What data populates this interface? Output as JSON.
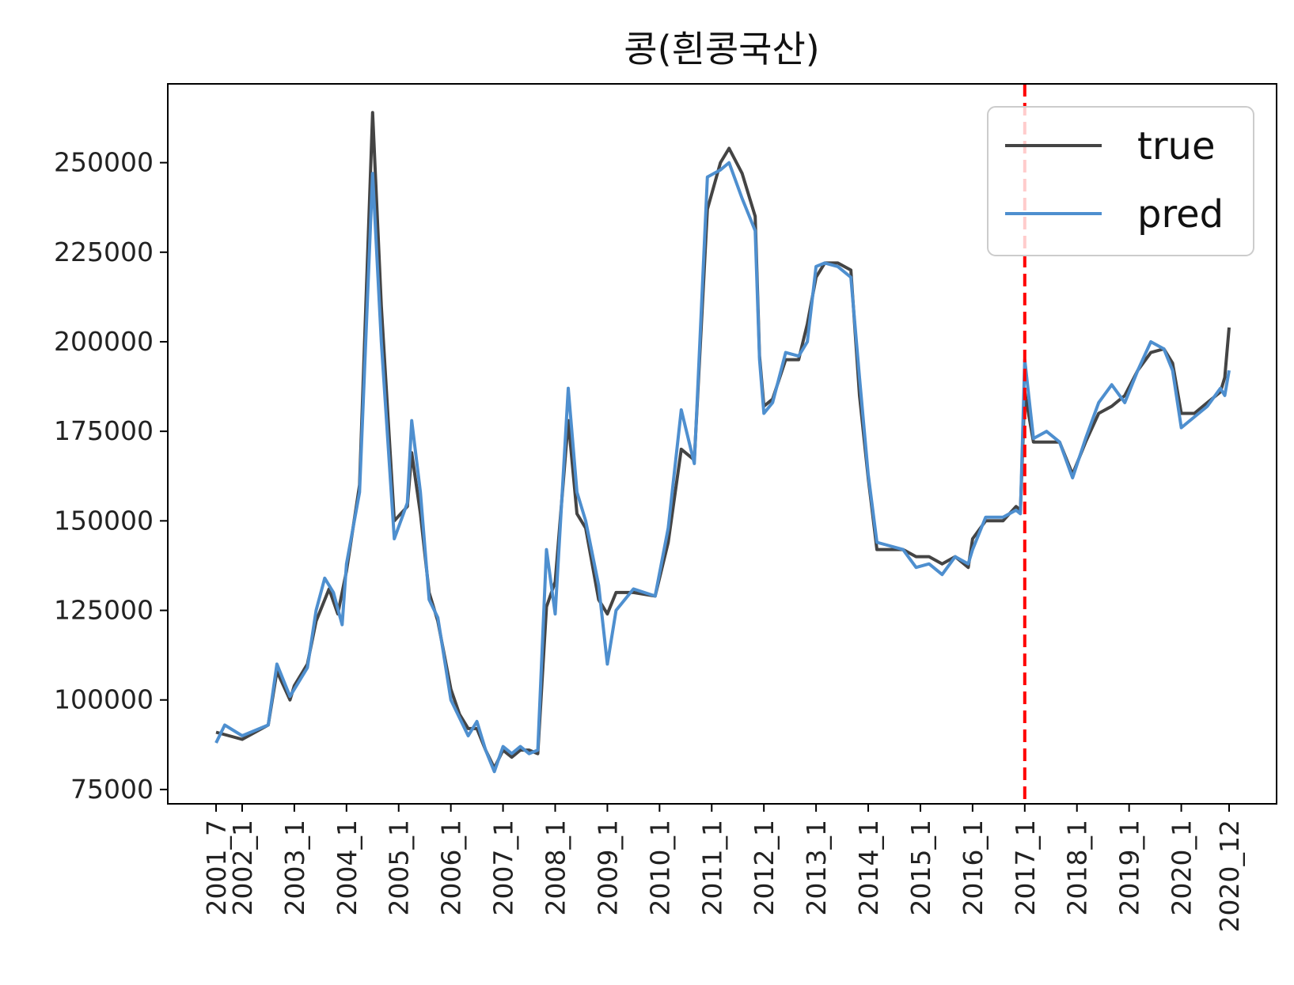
{
  "chart_data": {
    "type": "line",
    "title": "콩(흰콩국산)",
    "xlabel": "",
    "ylabel": "",
    "ylim": [
      71000,
      272000
    ],
    "yticks": [
      75000,
      100000,
      125000,
      150000,
      175000,
      200000,
      225000,
      250000
    ],
    "x_tick_labels": [
      "2001_7",
      "2002_1",
      "2003_1",
      "2004_1",
      "2005_1",
      "2006_1",
      "2007_1",
      "2008_1",
      "2009_1",
      "2010_1",
      "2011_1",
      "2012_1",
      "2013_1",
      "2014_1",
      "2015_1",
      "2016_1",
      "2017_1",
      "2018_1",
      "2019_1",
      "2020_1",
      "2020_12"
    ],
    "vline": {
      "at": "2017_1",
      "color": "#ff0000",
      "style": "dashed"
    },
    "grid": false,
    "legend_position": "top-right",
    "series": [
      {
        "name": "true",
        "color": "#444444",
        "points": [
          [
            "2001_7",
            91000
          ],
          [
            "2002_1",
            89000
          ],
          [
            "2002_7",
            93000
          ],
          [
            "2002_9",
            108000
          ],
          [
            "2002_12",
            100000
          ],
          [
            "2003_1",
            104000
          ],
          [
            "2003_4",
            110000
          ],
          [
            "2003_6",
            122000
          ],
          [
            "2003_9",
            131000
          ],
          [
            "2003_11",
            124000
          ],
          [
            "2004_1",
            136000
          ],
          [
            "2004_4",
            160000
          ],
          [
            "2004_7",
            264000
          ],
          [
            "2004_9",
            210000
          ],
          [
            "2004_12",
            150000
          ],
          [
            "2005_3",
            154000
          ],
          [
            "2005_4",
            169000
          ],
          [
            "2005_6",
            152000
          ],
          [
            "2005_8",
            130000
          ],
          [
            "2005_10",
            122000
          ],
          [
            "2006_1",
            103000
          ],
          [
            "2006_3",
            96000
          ],
          [
            "2006_5",
            92000
          ],
          [
            "2006_7",
            92000
          ],
          [
            "2006_9",
            86000
          ],
          [
            "2006_11",
            81000
          ],
          [
            "2007_1",
            86000
          ],
          [
            "2007_3",
            84000
          ],
          [
            "2007_5",
            86000
          ],
          [
            "2007_7",
            86000
          ],
          [
            "2007_9",
            85000
          ],
          [
            "2007_11",
            126000
          ],
          [
            "2008_1",
            133000
          ],
          [
            "2008_4",
            178000
          ],
          [
            "2008_6",
            152000
          ],
          [
            "2008_8",
            148000
          ],
          [
            "2008_11",
            128000
          ],
          [
            "2009_1",
            124000
          ],
          [
            "2009_3",
            130000
          ],
          [
            "2009_7",
            130000
          ],
          [
            "2009_12",
            129000
          ],
          [
            "2010_3",
            144000
          ],
          [
            "2010_6",
            170000
          ],
          [
            "2010_9",
            167000
          ],
          [
            "2010_12",
            237000
          ],
          [
            "2011_3",
            250000
          ],
          [
            "2011_5",
            254000
          ],
          [
            "2011_8",
            247000
          ],
          [
            "2011_11",
            235000
          ],
          [
            "2011_12",
            196000
          ],
          [
            "2012_1",
            182000
          ],
          [
            "2012_3",
            184000
          ],
          [
            "2012_6",
            195000
          ],
          [
            "2012_9",
            195000
          ],
          [
            "2012_11",
            205000
          ],
          [
            "2013_1",
            218000
          ],
          [
            "2013_3",
            222000
          ],
          [
            "2013_6",
            222000
          ],
          [
            "2013_9",
            220000
          ],
          [
            "2013_11",
            185000
          ],
          [
            "2014_1",
            162000
          ],
          [
            "2014_3",
            142000
          ],
          [
            "2014_6",
            142000
          ],
          [
            "2014_9",
            142000
          ],
          [
            "2014_12",
            140000
          ],
          [
            "2015_3",
            140000
          ],
          [
            "2015_6",
            138000
          ],
          [
            "2015_9",
            140000
          ],
          [
            "2015_12",
            137000
          ],
          [
            "2016_1",
            145000
          ],
          [
            "2016_4",
            150000
          ],
          [
            "2016_8",
            150000
          ],
          [
            "2016_11",
            154000
          ],
          [
            "2016_12",
            153000
          ],
          [
            "2017_1",
            186000
          ],
          [
            "2017_3",
            172000
          ],
          [
            "2017_6",
            172000
          ],
          [
            "2017_9",
            172000
          ],
          [
            "2017_12",
            163000
          ],
          [
            "2018_3",
            172000
          ],
          [
            "2018_6",
            180000
          ],
          [
            "2018_9",
            182000
          ],
          [
            "2018_12",
            185000
          ],
          [
            "2019_3",
            192000
          ],
          [
            "2019_6",
            197000
          ],
          [
            "2019_9",
            198000
          ],
          [
            "2019_11",
            194000
          ],
          [
            "2020_1",
            180000
          ],
          [
            "2020_4",
            180000
          ],
          [
            "2020_7",
            183000
          ],
          [
            "2020_10",
            186000
          ],
          [
            "2020_11",
            190000
          ],
          [
            "2020_12",
            204000
          ]
        ]
      },
      {
        "name": "pred",
        "color": "#4e8fcf",
        "points": [
          [
            "2001_7",
            88000
          ],
          [
            "2001_9",
            93000
          ],
          [
            "2002_1",
            90000
          ],
          [
            "2002_7",
            93000
          ],
          [
            "2002_9",
            110000
          ],
          [
            "2002_12",
            101000
          ],
          [
            "2003_1",
            103000
          ],
          [
            "2003_4",
            109000
          ],
          [
            "2003_6",
            125000
          ],
          [
            "2003_8",
            134000
          ],
          [
            "2003_10",
            130000
          ],
          [
            "2003_12",
            121000
          ],
          [
            "2004_1",
            138000
          ],
          [
            "2004_4",
            158000
          ],
          [
            "2004_7",
            247000
          ],
          [
            "2004_9",
            200000
          ],
          [
            "2004_12",
            145000
          ],
          [
            "2005_3",
            155000
          ],
          [
            "2005_4",
            178000
          ],
          [
            "2005_6",
            158000
          ],
          [
            "2005_8",
            128000
          ],
          [
            "2005_10",
            123000
          ],
          [
            "2006_1",
            100000
          ],
          [
            "2006_3",
            95000
          ],
          [
            "2006_5",
            90000
          ],
          [
            "2006_7",
            94000
          ],
          [
            "2006_9",
            86000
          ],
          [
            "2006_11",
            80000
          ],
          [
            "2007_1",
            87000
          ],
          [
            "2007_3",
            85000
          ],
          [
            "2007_5",
            87000
          ],
          [
            "2007_7",
            85000
          ],
          [
            "2007_9",
            86000
          ],
          [
            "2007_11",
            142000
          ],
          [
            "2008_1",
            124000
          ],
          [
            "2008_4",
            187000
          ],
          [
            "2008_6",
            158000
          ],
          [
            "2008_8",
            150000
          ],
          [
            "2008_11",
            132000
          ],
          [
            "2009_1",
            110000
          ],
          [
            "2009_3",
            125000
          ],
          [
            "2009_7",
            131000
          ],
          [
            "2009_12",
            129000
          ],
          [
            "2010_3",
            148000
          ],
          [
            "2010_6",
            181000
          ],
          [
            "2010_9",
            166000
          ],
          [
            "2010_12",
            246000
          ],
          [
            "2011_3",
            248000
          ],
          [
            "2011_5",
            250000
          ],
          [
            "2011_8",
            240000
          ],
          [
            "2011_11",
            231000
          ],
          [
            "2011_12",
            195000
          ],
          [
            "2012_1",
            180000
          ],
          [
            "2012_3",
            183000
          ],
          [
            "2012_6",
            197000
          ],
          [
            "2012_9",
            196000
          ],
          [
            "2012_11",
            200000
          ],
          [
            "2013_1",
            221000
          ],
          [
            "2013_3",
            222000
          ],
          [
            "2013_6",
            221000
          ],
          [
            "2013_9",
            218000
          ],
          [
            "2013_11",
            190000
          ],
          [
            "2014_1",
            163000
          ],
          [
            "2014_3",
            144000
          ],
          [
            "2014_6",
            143000
          ],
          [
            "2014_9",
            142000
          ],
          [
            "2014_12",
            137000
          ],
          [
            "2015_3",
            138000
          ],
          [
            "2015_6",
            135000
          ],
          [
            "2015_9",
            140000
          ],
          [
            "2015_12",
            138000
          ],
          [
            "2016_1",
            142000
          ],
          [
            "2016_4",
            151000
          ],
          [
            "2016_8",
            151000
          ],
          [
            "2016_11",
            153000
          ],
          [
            "2016_12",
            152000
          ],
          [
            "2017_1",
            195000
          ],
          [
            "2017_3",
            173000
          ],
          [
            "2017_6",
            175000
          ],
          [
            "2017_9",
            172000
          ],
          [
            "2017_12",
            162000
          ],
          [
            "2018_3",
            173000
          ],
          [
            "2018_6",
            183000
          ],
          [
            "2018_9",
            188000
          ],
          [
            "2018_12",
            183000
          ],
          [
            "2019_3",
            192000
          ],
          [
            "2019_6",
            200000
          ],
          [
            "2019_9",
            198000
          ],
          [
            "2019_11",
            192000
          ],
          [
            "2020_1",
            176000
          ],
          [
            "2020_4",
            179000
          ],
          [
            "2020_7",
            182000
          ],
          [
            "2020_10",
            187000
          ],
          [
            "2020_11",
            185000
          ],
          [
            "2020_12",
            192000
          ]
        ]
      }
    ]
  }
}
